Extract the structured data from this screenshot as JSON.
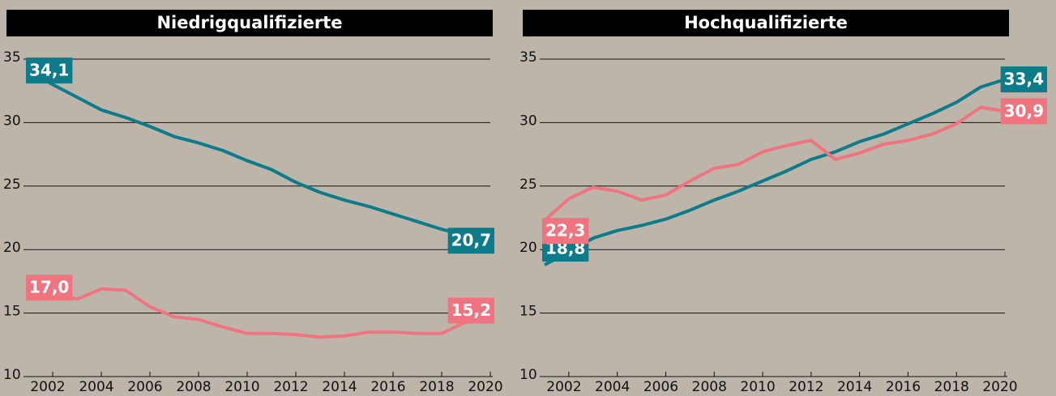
{
  "chart_data": [
    {
      "type": "line",
      "title": "Niedrigqualifizierte",
      "x": [
        2001,
        2002,
        2003,
        2004,
        2005,
        2006,
        2007,
        2008,
        2009,
        2010,
        2011,
        2012,
        2013,
        2014,
        2015,
        2016,
        2017,
        2018,
        2019,
        2020
      ],
      "xlim": [
        2001,
        2020
      ],
      "xticks": [
        2002,
        2004,
        2006,
        2008,
        2010,
        2012,
        2014,
        2016,
        2018,
        2020
      ],
      "ylim": [
        10,
        35
      ],
      "yticks": [
        10,
        15,
        20,
        25,
        30,
        35
      ],
      "grid": true,
      "series": [
        {
          "color": "#0e7b8a",
          "values": [
            34.1,
            33,
            32,
            31,
            30.4,
            29.7,
            28.9,
            28.4,
            27.8,
            27,
            26.3,
            25.3,
            24.5,
            23.9,
            23.4,
            22.8,
            22.2,
            21.6,
            21.1,
            20.7
          ],
          "value_labels": [
            "34,1",
            null,
            null,
            null,
            null,
            null,
            null,
            null,
            null,
            null,
            null,
            null,
            null,
            null,
            null,
            null,
            null,
            null,
            null,
            "20,7"
          ]
        },
        {
          "color": "#f07480",
          "values": [
            17.0,
            16.5,
            16.1,
            16.9,
            16.8,
            15.5,
            14.7,
            14.5,
            13.9,
            13.4,
            13.4,
            13.3,
            13.1,
            13.2,
            13.5,
            13.5,
            13.4,
            13.4,
            14.3,
            15.2
          ],
          "value_labels": [
            "17,0",
            null,
            null,
            null,
            null,
            null,
            null,
            null,
            null,
            null,
            null,
            null,
            null,
            null,
            null,
            null,
            null,
            null,
            null,
            "15,2"
          ]
        }
      ]
    },
    {
      "type": "line",
      "title": "Hochqualifizierte",
      "x": [
        2001,
        2002,
        2003,
        2004,
        2005,
        2006,
        2007,
        2008,
        2009,
        2010,
        2011,
        2012,
        2013,
        2014,
        2015,
        2016,
        2017,
        2018,
        2019,
        2020
      ],
      "xlim": [
        2001,
        2020
      ],
      "xticks": [
        2002,
        2004,
        2006,
        2008,
        2010,
        2012,
        2014,
        2016,
        2018,
        2020
      ],
      "ylim": [
        10,
        35
      ],
      "yticks": [
        10,
        15,
        20,
        25,
        30,
        35
      ],
      "grid": true,
      "series": [
        {
          "color": "#0e7b8a",
          "values": [
            18.8,
            19.8,
            20.9,
            21.5,
            21.9,
            22.4,
            23.1,
            23.9,
            24.6,
            25.4,
            26.2,
            27.1,
            27.7,
            28.5,
            29.1,
            29.9,
            30.7,
            31.6,
            32.8,
            33.4
          ],
          "value_labels": [
            "18,8",
            null,
            null,
            null,
            null,
            null,
            null,
            null,
            null,
            null,
            null,
            null,
            null,
            null,
            null,
            null,
            null,
            null,
            null,
            "33,4"
          ]
        },
        {
          "color": "#f07480",
          "values": [
            22.3,
            24,
            24.9,
            24.6,
            23.9,
            24.3,
            25.4,
            26.4,
            26.7,
            27.7,
            28.2,
            28.6,
            27.1,
            27.6,
            28.3,
            28.6,
            29.1,
            29.9,
            31.2,
            30.9
          ],
          "value_labels": [
            "22,3",
            null,
            null,
            null,
            null,
            null,
            null,
            null,
            null,
            null,
            null,
            null,
            null,
            null,
            null,
            null,
            null,
            null,
            null,
            "30,9"
          ]
        }
      ]
    }
  ]
}
